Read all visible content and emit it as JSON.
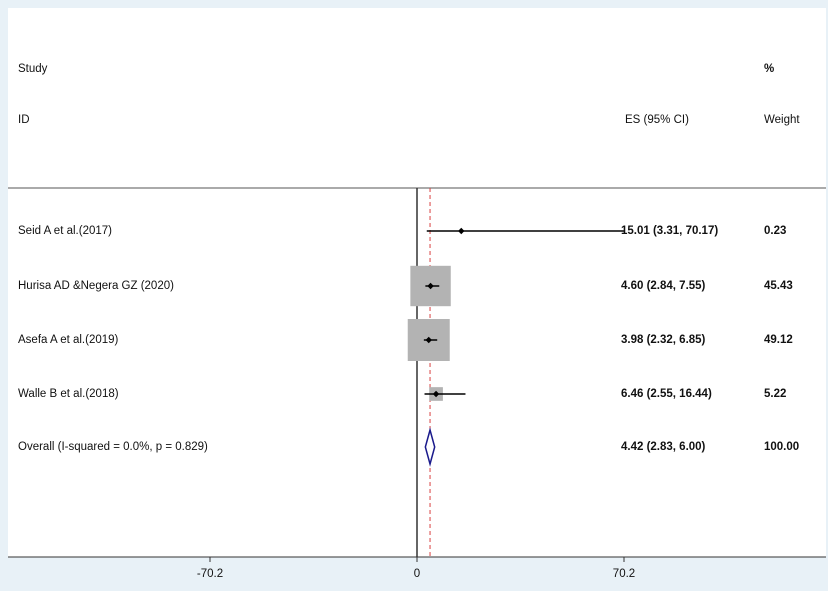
{
  "chart_data": {
    "type": "forest",
    "header": {
      "study_line1": "Study",
      "study_line2": "ID",
      "es_label": "ES (95% CI)",
      "weight_line1": "%",
      "weight_line2": "Weight"
    },
    "x_ticks": [
      "-70.2",
      "0",
      "70.2"
    ],
    "x_tick_values": [
      -70.2,
      0,
      70.2
    ],
    "xlim": [
      -140.4,
      140.4
    ],
    "null_line": 0,
    "pooled_es_line": 4.42,
    "studies": [
      {
        "label": "Seid A et al.(2017)",
        "es": 15.01,
        "lo": 3.31,
        "hi": 70.17,
        "es_ci_text": "15.01 (3.31, 70.17)",
        "weight": 0.23,
        "weight_text": "0.23"
      },
      {
        "label": "Hurisa AD &Negera GZ (2020)",
        "es": 4.6,
        "lo": 2.84,
        "hi": 7.55,
        "es_ci_text": "4.60 (2.84, 7.55)",
        "weight": 45.43,
        "weight_text": "45.43"
      },
      {
        "label": "Asefa A et al.(2019)",
        "es": 3.98,
        "lo": 2.32,
        "hi": 6.85,
        "es_ci_text": "3.98 (2.32, 6.85)",
        "weight": 49.12,
        "weight_text": "49.12"
      },
      {
        "label": "Walle B et al.(2018)",
        "es": 6.46,
        "lo": 2.55,
        "hi": 16.44,
        "es_ci_text": "6.46 (2.55, 16.44)",
        "weight": 5.22,
        "weight_text": "5.22"
      }
    ],
    "overall": {
      "label": "Overall  (I-squared = 0.0%, p = 0.829)",
      "es": 4.42,
      "lo": 2.83,
      "hi": 6.0,
      "es_ci_text": "4.42 (2.83, 6.00)",
      "weight_text": "100.00"
    },
    "colors": {
      "box": "#b3b3b3",
      "marker": "#000000",
      "diamond": "#1a1a8c",
      "pooled_line": "#d94040",
      "null_line": "#333333",
      "background": "#e8f1f7",
      "panel": "#ffffff"
    }
  }
}
